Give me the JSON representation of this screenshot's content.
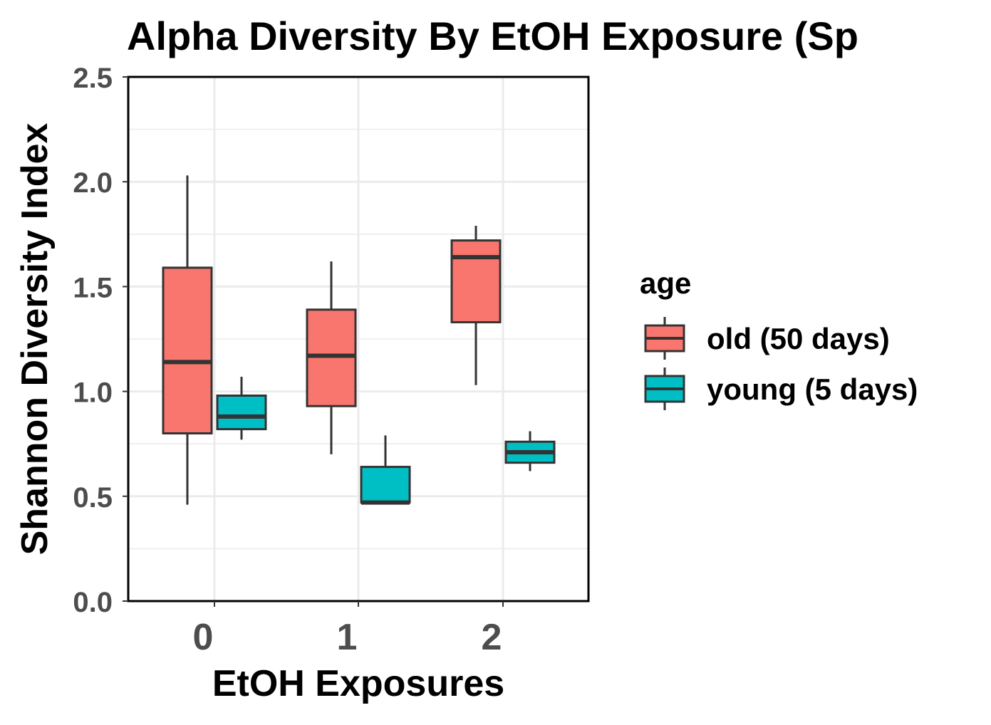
{
  "chart_data": {
    "type": "boxplot",
    "title": "Alpha Diversity By EtOH Exposure (Sp",
    "xlabel": "EtOH Exposures",
    "ylabel": "Shannon Diversity Index",
    "categories": [
      "0",
      "1",
      "2"
    ],
    "ylim": [
      0,
      2.5
    ],
    "y_ticks": [
      "0.0",
      "0.5",
      "1.0",
      "1.5",
      "2.0",
      "2.5"
    ],
    "grid": true,
    "legend": {
      "title": "age",
      "position": "right"
    },
    "series": [
      {
        "name": "old (50 days)",
        "color": "#F8766D",
        "boxes": [
          {
            "category": "0",
            "min": 0.46,
            "q1": 0.8,
            "median": 1.14,
            "q3": 1.59,
            "max": 2.03
          },
          {
            "category": "1",
            "min": 0.7,
            "q1": 0.93,
            "median": 1.17,
            "q3": 1.39,
            "max": 1.62
          },
          {
            "category": "2",
            "min": 1.03,
            "q1": 1.33,
            "median": 1.64,
            "q3": 1.72,
            "max": 1.79
          }
        ]
      },
      {
        "name": "young (5 days)",
        "color": "#00BFC4",
        "boxes": [
          {
            "category": "0",
            "min": 0.77,
            "q1": 0.82,
            "median": 0.88,
            "q3": 0.98,
            "max": 1.07
          },
          {
            "category": "1",
            "min": 0.47,
            "q1": 0.47,
            "median": 0.47,
            "q3": 0.64,
            "max": 0.79
          },
          {
            "category": "2",
            "min": 0.62,
            "q1": 0.66,
            "median": 0.71,
            "q3": 0.76,
            "max": 0.81
          }
        ]
      }
    ]
  }
}
